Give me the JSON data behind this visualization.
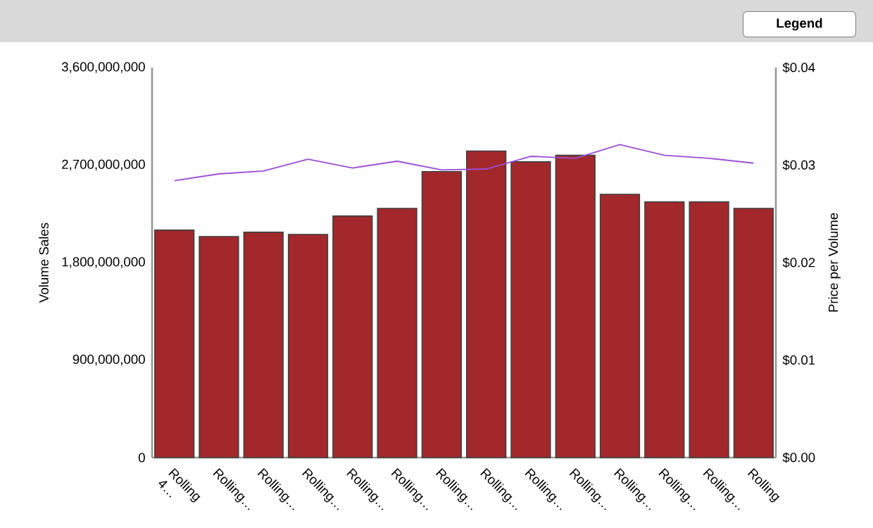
{
  "chart_data": {
    "type": "bar",
    "xlabel": null,
    "ylabel": "Volume Sales",
    "y2label": "Price per Volume",
    "categories": [
      "Rolling 4…",
      "Rolling…",
      "Rolling…",
      "Rolling…",
      "Rolling…",
      "Rolling…",
      "Rolling…",
      "Rolling…",
      "Rolling…",
      "Rolling…",
      "Rolling…",
      "Rolling…",
      "Rolling…",
      "Rolling"
    ],
    "series": [
      {
        "color": "#a3282b",
        "values": [
          2100000000,
          2040000000,
          2080000000,
          2060000000,
          2230000000,
          2300000000,
          2640000000,
          2830000000,
          2730000000,
          2790000000,
          2430000000,
          2360000000,
          2360000000,
          2300000000
        ]
      },
      {
        "type": "line",
        "axis": "y2",
        "color": "#9b4fd6",
        "values": [
          0.0284,
          0.0291,
          0.0294,
          0.0306,
          0.0297,
          0.0304,
          0.0295,
          0.0296,
          0.0309,
          0.0307,
          0.0321,
          0.031,
          0.0307,
          0.0302
        ]
      }
    ],
    "ylim": [
      0,
      3600000000
    ],
    "yticks": [
      {
        "value": 0,
        "label": "0"
      },
      {
        "value": 900000000,
        "label": "900,000,000"
      },
      {
        "value": 1800000000,
        "label": "1,800,000,000"
      },
      {
        "value": 2700000000,
        "label": "2,700,000,000"
      },
      {
        "value": 3600000000,
        "label": "3,600,000,000"
      }
    ],
    "y2lim": [
      0,
      0.04
    ],
    "y2ticks": [
      {
        "value": 0,
        "label": "$0.00"
      },
      {
        "value": 0.01,
        "label": "$0.01"
      },
      {
        "value": 0.02,
        "label": "$0.02"
      },
      {
        "value": 0.03,
        "label": "$0.03"
      },
      {
        "value": 0.04,
        "label": "$0.04"
      }
    ],
    "grid": false,
    "marker": "none",
    "line_style": "solid",
    "annotations": [
      "Legend"
    ]
  }
}
